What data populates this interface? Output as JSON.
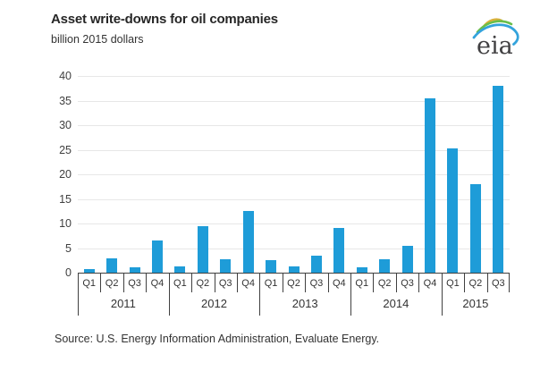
{
  "header": {
    "title": "Asset write-downs for oil companies",
    "subtitle": "billion 2015 dollars",
    "logo_text": "eia"
  },
  "chart_data": {
    "type": "bar",
    "title": "Asset write-downs for oil companies",
    "ylabel": "billion 2015 dollars",
    "categories": [
      "Q1",
      "Q2",
      "Q3",
      "Q4",
      "Q1",
      "Q2",
      "Q3",
      "Q4",
      "Q1",
      "Q2",
      "Q3",
      "Q4",
      "Q1",
      "Q2",
      "Q3",
      "Q4",
      "Q1",
      "Q2",
      "Q3"
    ],
    "year_groups": [
      {
        "label": "2011",
        "count": 4
      },
      {
        "label": "2012",
        "count": 4
      },
      {
        "label": "2013",
        "count": 4
      },
      {
        "label": "2014",
        "count": 4
      },
      {
        "label": "2015",
        "count": 3
      }
    ],
    "values": [
      0.7,
      3.0,
      1.1,
      6.6,
      1.3,
      9.4,
      2.8,
      12.5,
      2.5,
      1.2,
      3.4,
      9.1,
      1.1,
      2.8,
      5.5,
      35.5,
      25.2,
      18.0,
      38.0
    ],
    "ylim": [
      0,
      40
    ],
    "yticks": [
      0,
      5,
      10,
      15,
      20,
      25,
      30,
      35,
      40
    ],
    "grid": "horizontal",
    "legend": "none",
    "bar_color": "#1E9CD8",
    "gridline_color": "#E7E7E7",
    "axis_color": "#404040"
  },
  "footer": {
    "source": "Source:  U.S. Energy Information Administration, Evaluate Energy."
  },
  "colors": {
    "background": "#FFFFFF",
    "text": "#333333",
    "logo_blue": "#33A3DC",
    "logo_green": "#69BE4A",
    "logo_yellow": "#D9B13B"
  }
}
